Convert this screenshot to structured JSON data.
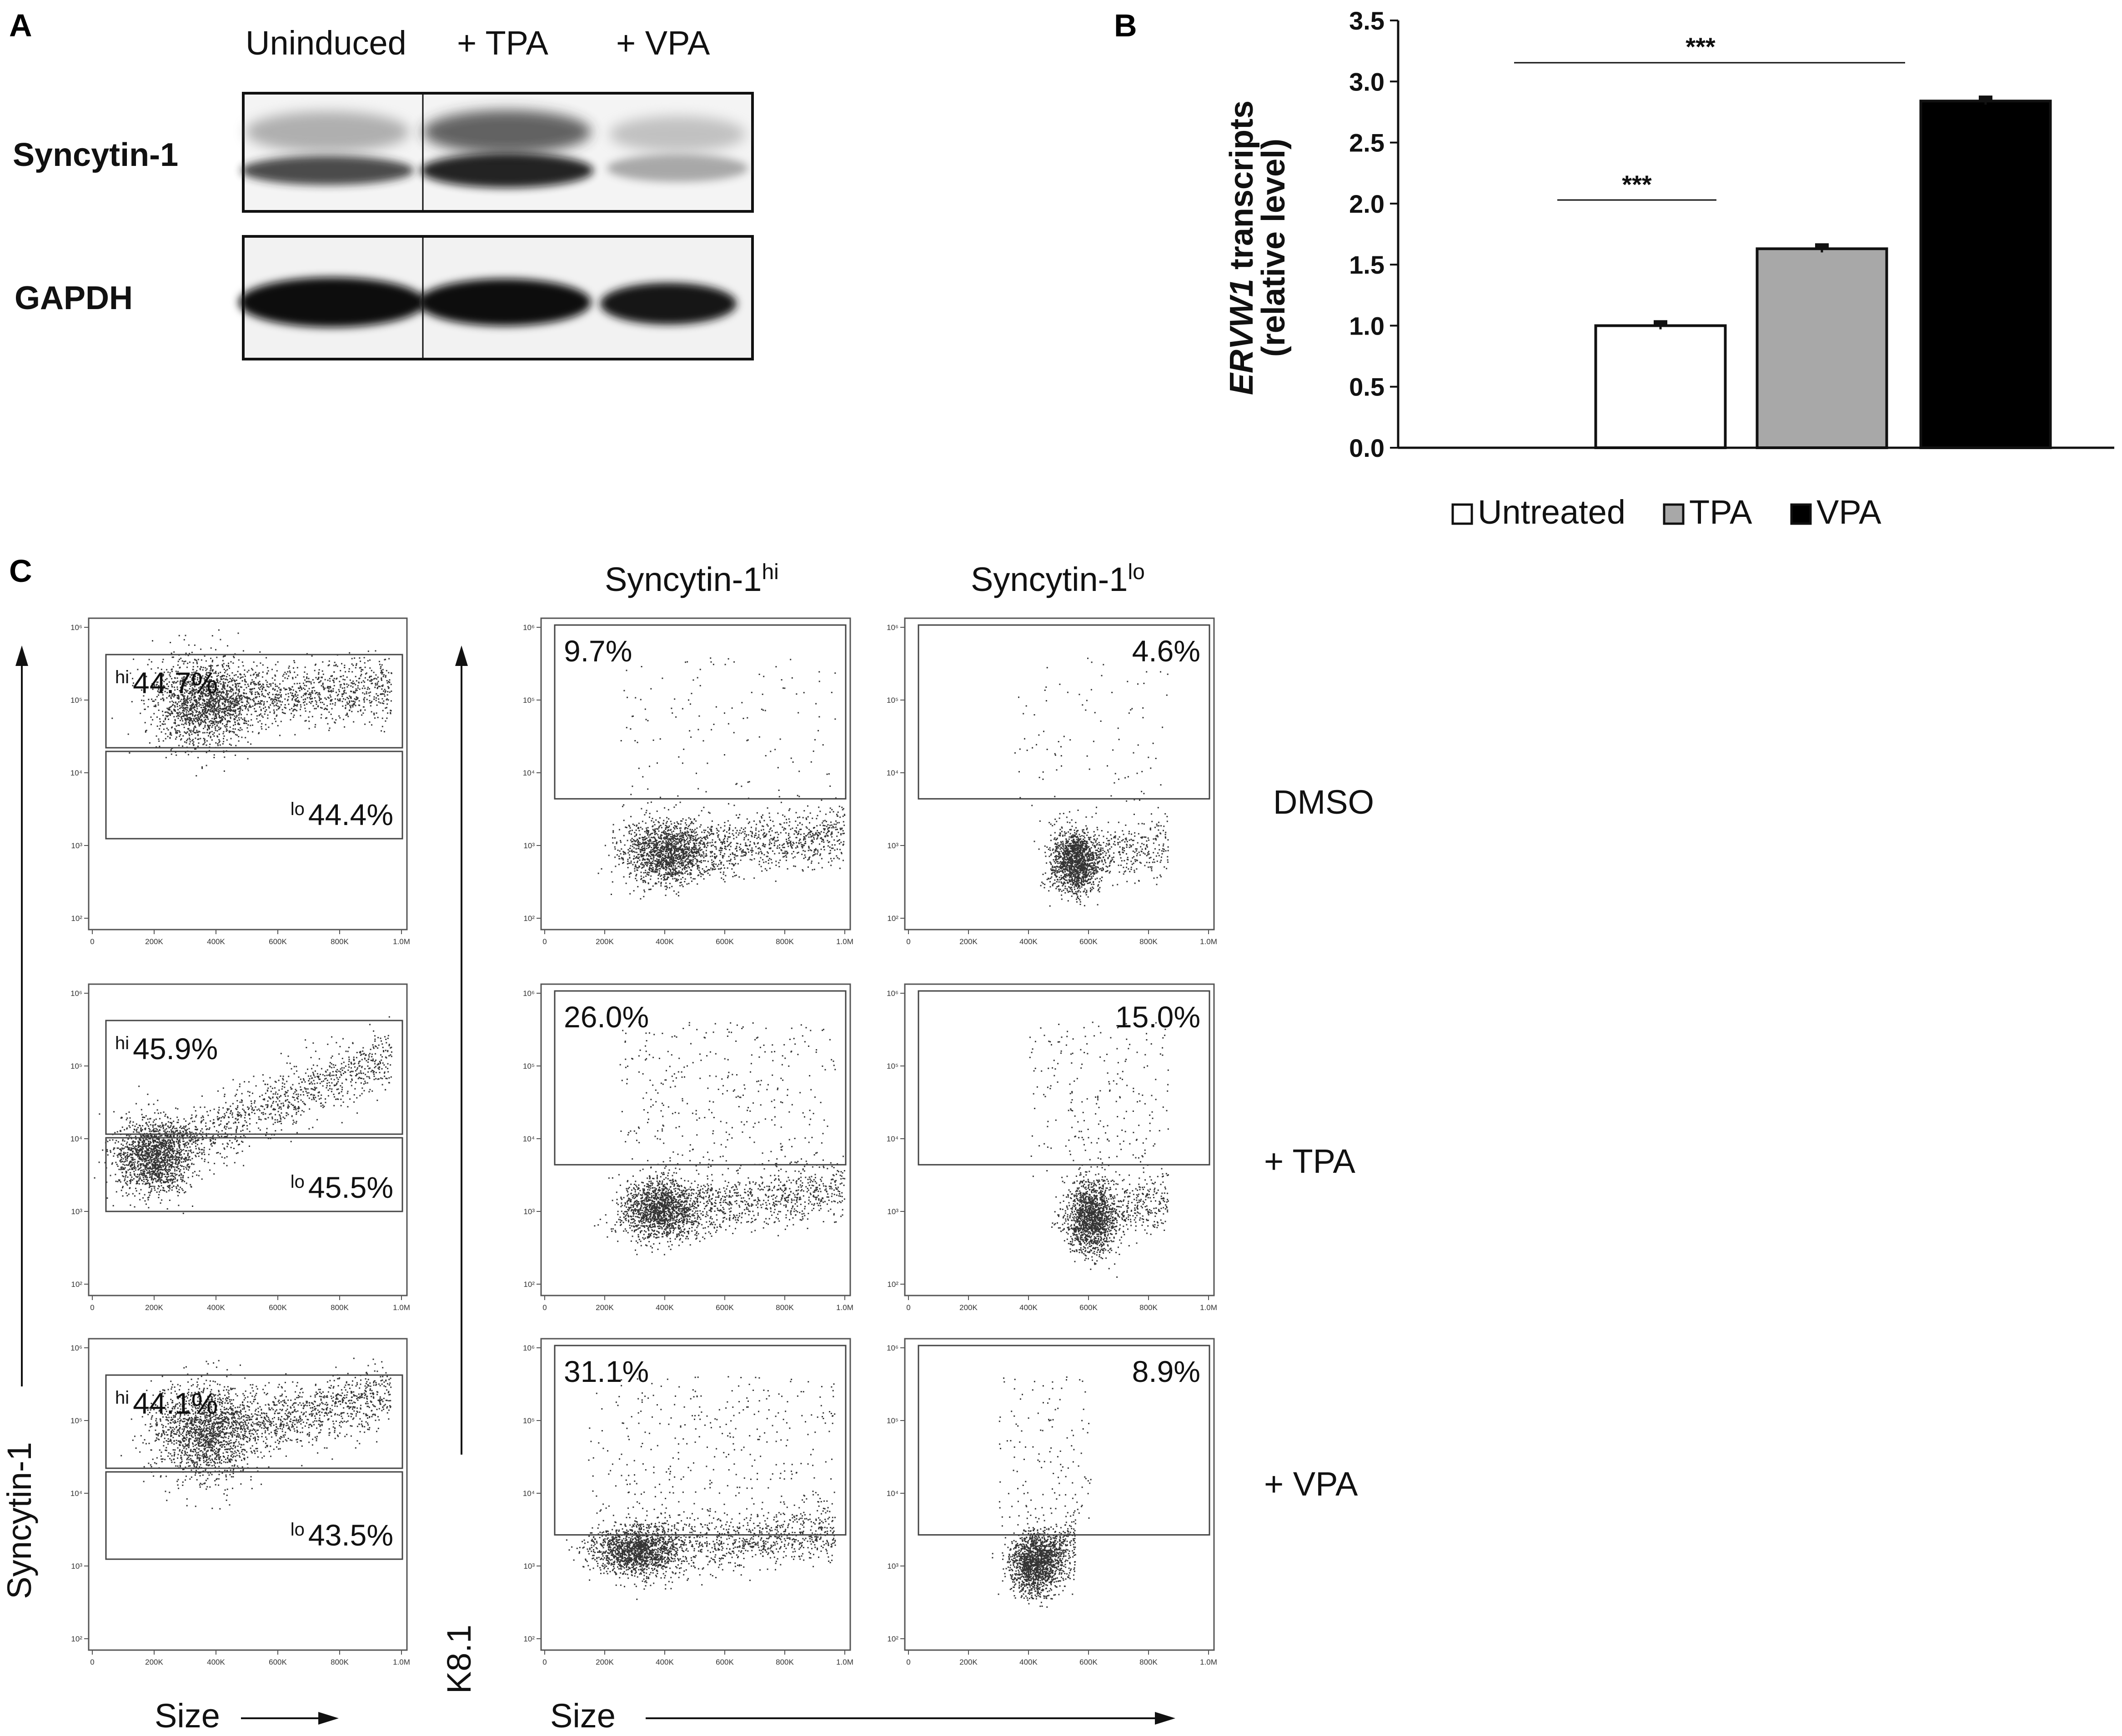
{
  "panel_a": {
    "letter": "A",
    "lanes": [
      "Uninduced",
      "+ TPA",
      "+ VPA"
    ],
    "rows": [
      "Syncytin-1",
      "GAPDH"
    ]
  },
  "panel_b": {
    "letter": "B",
    "ylabel_italic": "ERVW1",
    "ylabel_rest": " transcripts",
    "ylabel_line2": "(relative level)",
    "significance": "***"
  },
  "panel_c": {
    "letter": "C",
    "col_titles": {
      "hi_base": "Syncytin-1",
      "hi_sup": "hi",
      "lo_base": "Syncytin-1",
      "lo_sup": "lo"
    },
    "row_labels": [
      "DMSO",
      "+ TPA",
      "+ VPA"
    ],
    "gate_hi_sup": "hi",
    "gate_lo_sup": "lo",
    "left_gates": [
      {
        "hi": "44.7%",
        "lo": "44.4%"
      },
      {
        "hi": "45.9%",
        "lo": "45.5%"
      },
      {
        "hi": "44.1%",
        "lo": "43.5%"
      }
    ],
    "k81_hi": [
      "9.7%",
      "26.0%",
      "31.1%"
    ],
    "k81_lo": [
      "4.6%",
      "15.0%",
      "8.9%"
    ],
    "y_axis_left": "Syncytin-1",
    "y_axis_mid": "K8.1",
    "x_axis": "Size",
    "flow_xticks": [
      "0",
      "200K",
      "400K",
      "600K",
      "800K",
      "1.0M"
    ],
    "flow_yticks": [
      "10²",
      "10³",
      "10⁴",
      "10⁵",
      "10⁶"
    ]
  },
  "chart_data": {
    "type": "bar",
    "categories": [
      "Untreated",
      "TPA",
      "VPA"
    ],
    "values": [
      1.0,
      1.63,
      2.84
    ],
    "errors": [
      0.03,
      0.03,
      0.03
    ],
    "colors": [
      "#ffffff",
      "#a8a8a8",
      "#000000"
    ],
    "ylim": [
      0,
      3.5
    ],
    "yticks": [
      "0.0",
      "0.5",
      "1.0",
      "1.5",
      "2.0",
      "2.5",
      "3.0",
      "3.5"
    ],
    "legend": [
      "Untreated",
      "TPA",
      "VPA"
    ],
    "legend_position": "bottom",
    "significance": [
      {
        "from": "Untreated",
        "to": "TPA",
        "label": "***"
      },
      {
        "from": "Untreated",
        "to": "VPA",
        "label": "***"
      }
    ]
  }
}
